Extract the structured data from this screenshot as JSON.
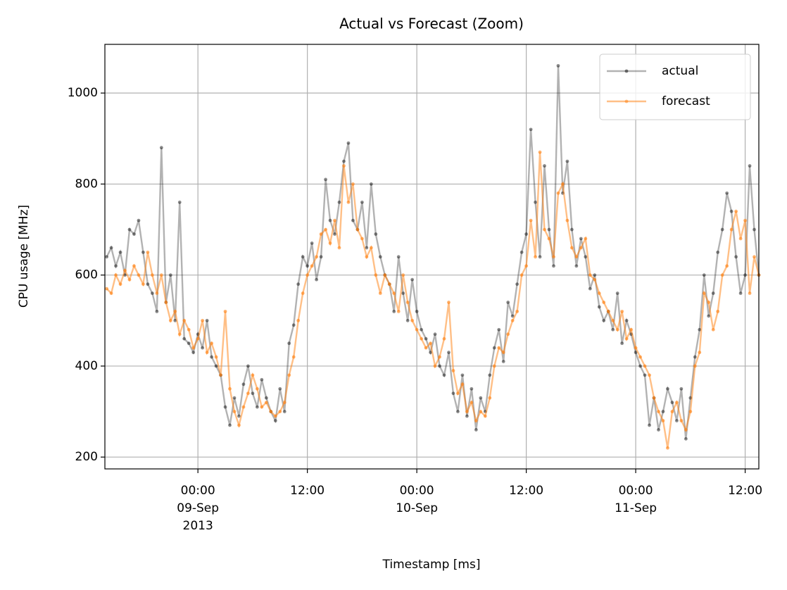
{
  "chart_data": {
    "type": "line",
    "title": "Actual vs Forecast (Zoom)",
    "x_label": "Timestamp [ms]",
    "y_label": "CPU usage [MHz]",
    "grid": true,
    "legend": "upper right",
    "xlim": [
      "2013-09-08 13:48",
      "2013-09-11 13:30"
    ],
    "ylim": [
      174,
      1107
    ],
    "yticks": [
      200,
      400,
      600,
      800,
      1000
    ],
    "xticks": [
      {
        "value": "2013-09-09 00:00",
        "label": [
          "00:00",
          "09-Sep",
          "2013"
        ]
      },
      {
        "value": "2013-09-09 12:00",
        "label": [
          "12:00"
        ]
      },
      {
        "value": "2013-09-10 00:00",
        "label": [
          "00:00",
          "10-Sep"
        ]
      },
      {
        "value": "2013-09-10 12:00",
        "label": [
          "12:00"
        ]
      },
      {
        "value": "2013-09-11 00:00",
        "label": [
          "00:00",
          "11-Sep"
        ]
      },
      {
        "value": "2013-09-11 12:00",
        "label": [
          "12:00"
        ]
      }
    ],
    "x": [
      "2013-09-08 14:00",
      "2013-09-08 14:30",
      "2013-09-08 15:00",
      "2013-09-08 15:30",
      "2013-09-08 16:00",
      "2013-09-08 16:30",
      "2013-09-08 17:00",
      "2013-09-08 17:30",
      "2013-09-08 18:00",
      "2013-09-08 18:30",
      "2013-09-08 19:00",
      "2013-09-08 19:30",
      "2013-09-08 20:00",
      "2013-09-08 20:30",
      "2013-09-08 21:00",
      "2013-09-08 21:30",
      "2013-09-08 22:00",
      "2013-09-08 22:30",
      "2013-09-08 23:00",
      "2013-09-08 23:30",
      "2013-09-09 00:00",
      "2013-09-09 00:30",
      "2013-09-09 01:00",
      "2013-09-09 01:30",
      "2013-09-09 02:00",
      "2013-09-09 02:30",
      "2013-09-09 03:00",
      "2013-09-09 03:30",
      "2013-09-09 04:00",
      "2013-09-09 04:30",
      "2013-09-09 05:00",
      "2013-09-09 05:30",
      "2013-09-09 06:00",
      "2013-09-09 06:30",
      "2013-09-09 07:00",
      "2013-09-09 07:30",
      "2013-09-09 08:00",
      "2013-09-09 08:30",
      "2013-09-09 09:00",
      "2013-09-09 09:30",
      "2013-09-09 10:00",
      "2013-09-09 10:30",
      "2013-09-09 11:00",
      "2013-09-09 11:30",
      "2013-09-09 12:00",
      "2013-09-09 12:30",
      "2013-09-09 13:00",
      "2013-09-09 13:30",
      "2013-09-09 14:00",
      "2013-09-09 14:30",
      "2013-09-09 15:00",
      "2013-09-09 15:30",
      "2013-09-09 16:00",
      "2013-09-09 16:30",
      "2013-09-09 17:00",
      "2013-09-09 17:30",
      "2013-09-09 18:00",
      "2013-09-09 18:30",
      "2013-09-09 19:00",
      "2013-09-09 19:30",
      "2013-09-09 20:00",
      "2013-09-09 20:30",
      "2013-09-09 21:00",
      "2013-09-09 21:30",
      "2013-09-09 22:00",
      "2013-09-09 22:30",
      "2013-09-09 23:00",
      "2013-09-09 23:30",
      "2013-09-10 00:00",
      "2013-09-10 00:30",
      "2013-09-10 01:00",
      "2013-09-10 01:30",
      "2013-09-10 02:00",
      "2013-09-10 02:30",
      "2013-09-10 03:00",
      "2013-09-10 03:30",
      "2013-09-10 04:00",
      "2013-09-10 04:30",
      "2013-09-10 05:00",
      "2013-09-10 05:30",
      "2013-09-10 06:00",
      "2013-09-10 06:30",
      "2013-09-10 07:00",
      "2013-09-10 07:30",
      "2013-09-10 08:00",
      "2013-09-10 08:30",
      "2013-09-10 09:00",
      "2013-09-10 09:30",
      "2013-09-10 10:00",
      "2013-09-10 10:30",
      "2013-09-10 11:00",
      "2013-09-10 11:30",
      "2013-09-10 12:00",
      "2013-09-10 12:30",
      "2013-09-10 13:00",
      "2013-09-10 13:30",
      "2013-09-10 14:00",
      "2013-09-10 14:30",
      "2013-09-10 15:00",
      "2013-09-10 15:30",
      "2013-09-10 16:00",
      "2013-09-10 16:30",
      "2013-09-10 17:00",
      "2013-09-10 17:30",
      "2013-09-10 18:00",
      "2013-09-10 18:30",
      "2013-09-10 19:00",
      "2013-09-10 19:30",
      "2013-09-10 20:00",
      "2013-09-10 20:30",
      "2013-09-10 21:00",
      "2013-09-10 21:30",
      "2013-09-10 22:00",
      "2013-09-10 22:30",
      "2013-09-10 23:00",
      "2013-09-10 23:30",
      "2013-09-11 00:00",
      "2013-09-11 00:30",
      "2013-09-11 01:00",
      "2013-09-11 01:30",
      "2013-09-11 02:00",
      "2013-09-11 02:30",
      "2013-09-11 03:00",
      "2013-09-11 03:30",
      "2013-09-11 04:00",
      "2013-09-11 04:30",
      "2013-09-11 05:00",
      "2013-09-11 05:30",
      "2013-09-11 06:00",
      "2013-09-11 06:30",
      "2013-09-11 07:00",
      "2013-09-11 07:30",
      "2013-09-11 08:00",
      "2013-09-11 08:30",
      "2013-09-11 09:00",
      "2013-09-11 09:30",
      "2013-09-11 10:00",
      "2013-09-11 10:30",
      "2013-09-11 11:00",
      "2013-09-11 11:30",
      "2013-09-11 12:00",
      "2013-09-11 12:30",
      "2013-09-11 13:00",
      "2013-09-11 13:30"
    ],
    "series": [
      {
        "name": "actual",
        "color": "#000000",
        "values": [
          640,
          660,
          620,
          650,
          600,
          700,
          690,
          720,
          650,
          580,
          560,
          520,
          880,
          540,
          600,
          500,
          760,
          460,
          450,
          430,
          470,
          440,
          500,
          420,
          400,
          380,
          310,
          270,
          330,
          290,
          360,
          400,
          340,
          310,
          370,
          330,
          300,
          280,
          350,
          300,
          450,
          490,
          580,
          640,
          620,
          670,
          590,
          640,
          810,
          720,
          690,
          760,
          850,
          890,
          720,
          700,
          760,
          660,
          800,
          690,
          640,
          600,
          580,
          520,
          640,
          560,
          500,
          590,
          520,
          480,
          460,
          430,
          470,
          400,
          380,
          430,
          340,
          300,
          380,
          290,
          350,
          260,
          330,
          300,
          380,
          440,
          480,
          410,
          540,
          510,
          580,
          650,
          690,
          920,
          760,
          640,
          840,
          700,
          620,
          1060,
          780,
          850,
          700,
          620,
          680,
          640,
          570,
          600,
          530,
          500,
          520,
          480,
          560,
          450,
          500,
          470,
          430,
          400,
          380,
          270,
          330,
          260,
          300,
          350,
          320,
          280,
          350,
          240,
          330,
          420,
          480,
          600,
          510,
          560,
          650,
          700,
          780,
          740,
          640,
          560,
          600,
          840,
          700,
          600
        ]
      },
      {
        "name": "forecast",
        "color": "#ff7f0e",
        "values": [
          570,
          560,
          600,
          580,
          610,
          590,
          620,
          600,
          580,
          650,
          600,
          560,
          600,
          540,
          500,
          520,
          470,
          500,
          480,
          440,
          460,
          500,
          430,
          450,
          420,
          380,
          520,
          350,
          300,
          270,
          310,
          340,
          380,
          350,
          310,
          320,
          300,
          290,
          300,
          320,
          380,
          420,
          500,
          560,
          600,
          620,
          640,
          690,
          700,
          670,
          720,
          660,
          840,
          760,
          800,
          700,
          680,
          640,
          660,
          600,
          560,
          600,
          580,
          560,
          520,
          600,
          540,
          500,
          480,
          460,
          440,
          450,
          400,
          420,
          460,
          540,
          390,
          340,
          360,
          300,
          320,
          280,
          300,
          290,
          330,
          400,
          440,
          430,
          470,
          500,
          520,
          600,
          620,
          720,
          640,
          870,
          700,
          680,
          640,
          780,
          800,
          720,
          660,
          640,
          660,
          680,
          600,
          590,
          560,
          540,
          520,
          500,
          480,
          520,
          460,
          480,
          440,
          420,
          400,
          380,
          330,
          300,
          280,
          220,
          300,
          320,
          280,
          260,
          300,
          400,
          430,
          560,
          540,
          480,
          520,
          600,
          620,
          700,
          740,
          680,
          720,
          560,
          640,
          600
        ]
      }
    ]
  }
}
